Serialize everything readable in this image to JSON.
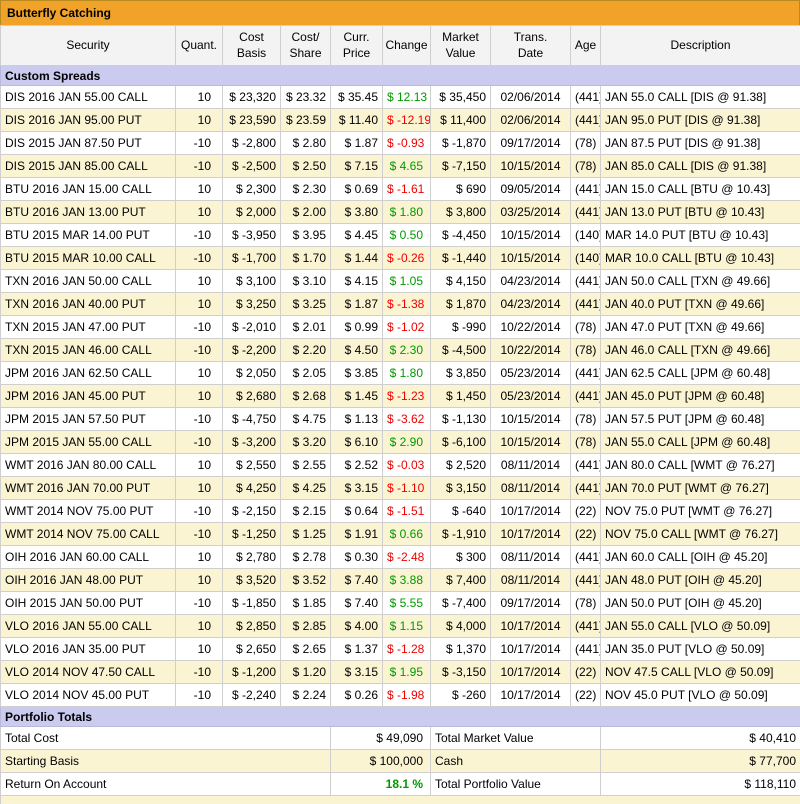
{
  "title": "Butterfly Catching",
  "colors": {
    "positive": "#009900",
    "negative": "#ee0000",
    "title_bg": "#f0a328",
    "section_bg": "#cbcbef",
    "header_bg": "#f3f3f3",
    "row_alt_bg": "#faf4d3",
    "border": "#cfcfcf"
  },
  "columns": [
    "Security",
    "Quant.",
    "Cost\nBasis",
    "Cost/\nShare",
    "Curr.\nPrice",
    "Change",
    "Market\nValue",
    "Trans.\nDate",
    "Age",
    "Description"
  ],
  "sections": {
    "custom_spreads": "Custom Spreads",
    "portfolio_totals": "Portfolio Totals"
  },
  "positions": [
    {
      "security": "DIS 2016 JAN 55.00 CALL",
      "quant": "10",
      "cost_basis": "$ 23,320",
      "cost_share": "$ 23.32",
      "curr_price": "$ 35.45",
      "change": "$ 12.13",
      "market_value": "$ 35,450",
      "trans_date": "02/06/2014",
      "age": "(441)",
      "description": "JAN 55.0 CALL [DIS @ 91.38]"
    },
    {
      "security": "DIS 2016 JAN 95.00 PUT",
      "quant": "10",
      "cost_basis": "$ 23,590",
      "cost_share": "$ 23.59",
      "curr_price": "$ 11.40",
      "change": "$ -12.19",
      "market_value": "$ 11,400",
      "trans_date": "02/06/2014",
      "age": "(441)",
      "description": "JAN 95.0 PUT [DIS @ 91.38]"
    },
    {
      "security": "DIS 2015 JAN 87.50 PUT",
      "quant": "-10",
      "cost_basis": "$ -2,800",
      "cost_share": "$ 2.80",
      "curr_price": "$ 1.87",
      "change": "$ -0.93",
      "market_value": "$ -1,870",
      "trans_date": "09/17/2014",
      "age": "(78)",
      "description": "JAN 87.5 PUT [DIS @ 91.38]"
    },
    {
      "security": "DIS 2015 JAN 85.00 CALL",
      "quant": "-10",
      "cost_basis": "$ -2,500",
      "cost_share": "$ 2.50",
      "curr_price": "$ 7.15",
      "change": "$ 4.65",
      "market_value": "$ -7,150",
      "trans_date": "10/15/2014",
      "age": "(78)",
      "description": "JAN 85.0 CALL [DIS @ 91.38]"
    },
    {
      "security": "BTU 2016 JAN 15.00 CALL",
      "quant": "10",
      "cost_basis": "$ 2,300",
      "cost_share": "$ 2.30",
      "curr_price": "$ 0.69",
      "change": "$ -1.61",
      "market_value": "$ 690",
      "trans_date": "09/05/2014",
      "age": "(441)",
      "description": "JAN 15.0 CALL [BTU @ 10.43]"
    },
    {
      "security": "BTU 2016 JAN 13.00 PUT",
      "quant": "10",
      "cost_basis": "$ 2,000",
      "cost_share": "$ 2.00",
      "curr_price": "$ 3.80",
      "change": "$ 1.80",
      "market_value": "$ 3,800",
      "trans_date": "03/25/2014",
      "age": "(441)",
      "description": "JAN 13.0 PUT [BTU @ 10.43]"
    },
    {
      "security": "BTU 2015 MAR 14.00 PUT",
      "quant": "-10",
      "cost_basis": "$ -3,950",
      "cost_share": "$ 3.95",
      "curr_price": "$ 4.45",
      "change": "$ 0.50",
      "market_value": "$ -4,450",
      "trans_date": "10/15/2014",
      "age": "(140)",
      "description": "MAR 14.0 PUT [BTU @ 10.43]"
    },
    {
      "security": "BTU 2015 MAR 10.00 CALL",
      "quant": "-10",
      "cost_basis": "$ -1,700",
      "cost_share": "$ 1.70",
      "curr_price": "$ 1.44",
      "change": "$ -0.26",
      "market_value": "$ -1,440",
      "trans_date": "10/15/2014",
      "age": "(140)",
      "description": "MAR 10.0 CALL [BTU @ 10.43]"
    },
    {
      "security": "TXN 2016 JAN 50.00 CALL",
      "quant": "10",
      "cost_basis": "$ 3,100",
      "cost_share": "$ 3.10",
      "curr_price": "$ 4.15",
      "change": "$ 1.05",
      "market_value": "$ 4,150",
      "trans_date": "04/23/2014",
      "age": "(441)",
      "description": "JAN 50.0 CALL [TXN @ 49.66]"
    },
    {
      "security": "TXN 2016 JAN 40.00 PUT",
      "quant": "10",
      "cost_basis": "$ 3,250",
      "cost_share": "$ 3.25",
      "curr_price": "$ 1.87",
      "change": "$ -1.38",
      "market_value": "$ 1,870",
      "trans_date": "04/23/2014",
      "age": "(441)",
      "description": "JAN 40.0 PUT [TXN @ 49.66]"
    },
    {
      "security": "TXN 2015 JAN 47.00 PUT",
      "quant": "-10",
      "cost_basis": "$ -2,010",
      "cost_share": "$ 2.01",
      "curr_price": "$ 0.99",
      "change": "$ -1.02",
      "market_value": "$ -990",
      "trans_date": "10/22/2014",
      "age": "(78)",
      "description": "JAN 47.0 PUT [TXN @ 49.66]"
    },
    {
      "security": "TXN 2015 JAN 46.00 CALL",
      "quant": "-10",
      "cost_basis": "$ -2,200",
      "cost_share": "$ 2.20",
      "curr_price": "$ 4.50",
      "change": "$ 2.30",
      "market_value": "$ -4,500",
      "trans_date": "10/22/2014",
      "age": "(78)",
      "description": "JAN 46.0 CALL [TXN @ 49.66]"
    },
    {
      "security": "JPM 2016 JAN 62.50 CALL",
      "quant": "10",
      "cost_basis": "$ 2,050",
      "cost_share": "$ 2.05",
      "curr_price": "$ 3.85",
      "change": "$ 1.80",
      "market_value": "$ 3,850",
      "trans_date": "05/23/2014",
      "age": "(441)",
      "description": "JAN 62.5 CALL [JPM @ 60.48]"
    },
    {
      "security": "JPM 2016 JAN 45.00 PUT",
      "quant": "10",
      "cost_basis": "$ 2,680",
      "cost_share": "$ 2.68",
      "curr_price": "$ 1.45",
      "change": "$ -1.23",
      "market_value": "$ 1,450",
      "trans_date": "05/23/2014",
      "age": "(441)",
      "description": "JAN 45.0 PUT [JPM @ 60.48]"
    },
    {
      "security": "JPM 2015 JAN 57.50 PUT",
      "quant": "-10",
      "cost_basis": "$ -4,750",
      "cost_share": "$ 4.75",
      "curr_price": "$ 1.13",
      "change": "$ -3.62",
      "market_value": "$ -1,130",
      "trans_date": "10/15/2014",
      "age": "(78)",
      "description": "JAN 57.5 PUT [JPM @ 60.48]"
    },
    {
      "security": "JPM 2015 JAN 55.00 CALL",
      "quant": "-10",
      "cost_basis": "$ -3,200",
      "cost_share": "$ 3.20",
      "curr_price": "$ 6.10",
      "change": "$ 2.90",
      "market_value": "$ -6,100",
      "trans_date": "10/15/2014",
      "age": "(78)",
      "description": "JAN 55.0 CALL [JPM @ 60.48]"
    },
    {
      "security": "WMT 2016 JAN 80.00 CALL",
      "quant": "10",
      "cost_basis": "$ 2,550",
      "cost_share": "$ 2.55",
      "curr_price": "$ 2.52",
      "change": "$ -0.03",
      "market_value": "$ 2,520",
      "trans_date": "08/11/2014",
      "age": "(441)",
      "description": "JAN 80.0 CALL [WMT @ 76.27]"
    },
    {
      "security": "WMT 2016 JAN 70.00 PUT",
      "quant": "10",
      "cost_basis": "$ 4,250",
      "cost_share": "$ 4.25",
      "curr_price": "$ 3.15",
      "change": "$ -1.10",
      "market_value": "$ 3,150",
      "trans_date": "08/11/2014",
      "age": "(441)",
      "description": "JAN 70.0 PUT [WMT @ 76.27]"
    },
    {
      "security": "WMT 2014 NOV 75.00 PUT",
      "quant": "-10",
      "cost_basis": "$ -2,150",
      "cost_share": "$ 2.15",
      "curr_price": "$ 0.64",
      "change": "$ -1.51",
      "market_value": "$ -640",
      "trans_date": "10/17/2014",
      "age": "(22)",
      "description": "NOV 75.0 PUT [WMT @ 76.27]"
    },
    {
      "security": "WMT 2014 NOV 75.00 CALL",
      "quant": "-10",
      "cost_basis": "$ -1,250",
      "cost_share": "$ 1.25",
      "curr_price": "$ 1.91",
      "change": "$ 0.66",
      "market_value": "$ -1,910",
      "trans_date": "10/17/2014",
      "age": "(22)",
      "description": "NOV 75.0 CALL [WMT @ 76.27]"
    },
    {
      "security": "OIH 2016 JAN 60.00 CALL",
      "quant": "10",
      "cost_basis": "$ 2,780",
      "cost_share": "$ 2.78",
      "curr_price": "$ 0.30",
      "change": "$ -2.48",
      "market_value": "$ 300",
      "trans_date": "08/11/2014",
      "age": "(441)",
      "description": "JAN 60.0 CALL [OIH @ 45.20]"
    },
    {
      "security": "OIH 2016 JAN 48.00 PUT",
      "quant": "10",
      "cost_basis": "$ 3,520",
      "cost_share": "$ 3.52",
      "curr_price": "$ 7.40",
      "change": "$ 3.88",
      "market_value": "$ 7,400",
      "trans_date": "08/11/2014",
      "age": "(441)",
      "description": "JAN 48.0 PUT [OIH @ 45.20]"
    },
    {
      "security": "OIH 2015 JAN 50.00 PUT",
      "quant": "-10",
      "cost_basis": "$ -1,850",
      "cost_share": "$ 1.85",
      "curr_price": "$ 7.40",
      "change": "$ 5.55",
      "market_value": "$ -7,400",
      "trans_date": "09/17/2014",
      "age": "(78)",
      "description": "JAN 50.0 PUT [OIH @ 45.20]"
    },
    {
      "security": "VLO 2016 JAN 55.00 CALL",
      "quant": "10",
      "cost_basis": "$ 2,850",
      "cost_share": "$ 2.85",
      "curr_price": "$ 4.00",
      "change": "$ 1.15",
      "market_value": "$ 4,000",
      "trans_date": "10/17/2014",
      "age": "(441)",
      "description": "JAN 55.0 CALL [VLO @ 50.09]"
    },
    {
      "security": "VLO 2016 JAN 35.00 PUT",
      "quant": "10",
      "cost_basis": "$ 2,650",
      "cost_share": "$ 2.65",
      "curr_price": "$ 1.37",
      "change": "$ -1.28",
      "market_value": "$ 1,370",
      "trans_date": "10/17/2014",
      "age": "(441)",
      "description": "JAN 35.0 PUT [VLO @ 50.09]"
    },
    {
      "security": "VLO 2014 NOV 47.50 CALL",
      "quant": "-10",
      "cost_basis": "$ -1,200",
      "cost_share": "$ 1.20",
      "curr_price": "$ 3.15",
      "change": "$ 1.95",
      "market_value": "$ -3,150",
      "trans_date": "10/17/2014",
      "age": "(22)",
      "description": "NOV 47.5 CALL [VLO @ 50.09]"
    },
    {
      "security": "VLO 2014 NOV 45.00 PUT",
      "quant": "-10",
      "cost_basis": "$ -2,240",
      "cost_share": "$ 2.24",
      "curr_price": "$ 0.26",
      "change": "$ -1.98",
      "market_value": "$ -260",
      "trans_date": "10/17/2014",
      "age": "(22)",
      "description": "NOV 45.0 PUT [VLO @ 50.09]"
    }
  ],
  "totals": {
    "rows": [
      {
        "label": "Total Cost",
        "value": "$ 49,090",
        "label2": "Total Market Value",
        "value2": "$ 40,410"
      },
      {
        "label": "Starting Basis",
        "value": "$ 100,000",
        "label2": "Cash",
        "value2": "$ 77,700"
      },
      {
        "label": "Return On Account",
        "value": "18.1 %",
        "value_highlight": true,
        "label2": "Total Portfolio Value",
        "value2": "$ 118,110"
      }
    ]
  }
}
